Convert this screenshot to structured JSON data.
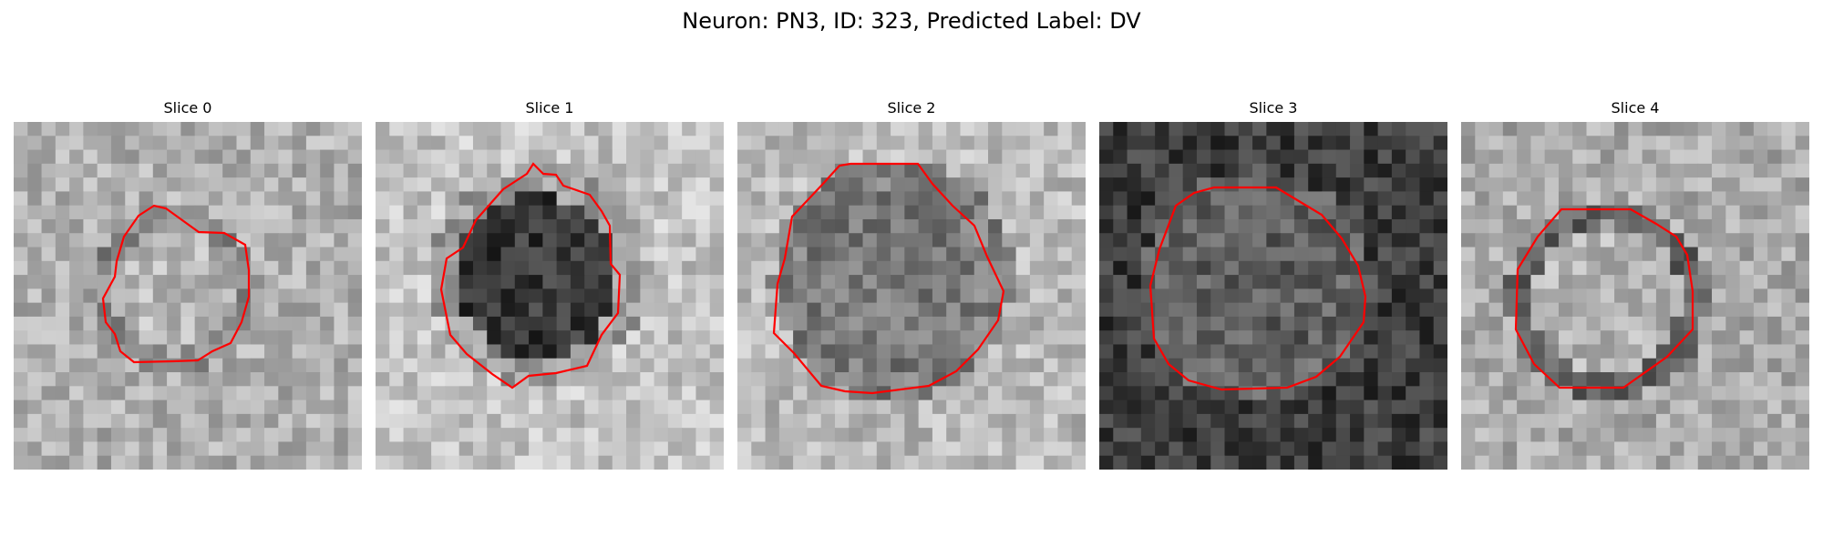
{
  "figure": {
    "title": "Neuron: PN3, ID: 323, Predicted Label: DV"
  },
  "colors": {
    "contour": "#ff0000",
    "background": "#ffffff"
  },
  "slices": [
    {
      "label": "Slice 0"
    },
    {
      "label": "Slice 1"
    },
    {
      "label": "Slice 2"
    },
    {
      "label": "Slice 3"
    },
    {
      "label": "Slice 4"
    }
  ]
}
